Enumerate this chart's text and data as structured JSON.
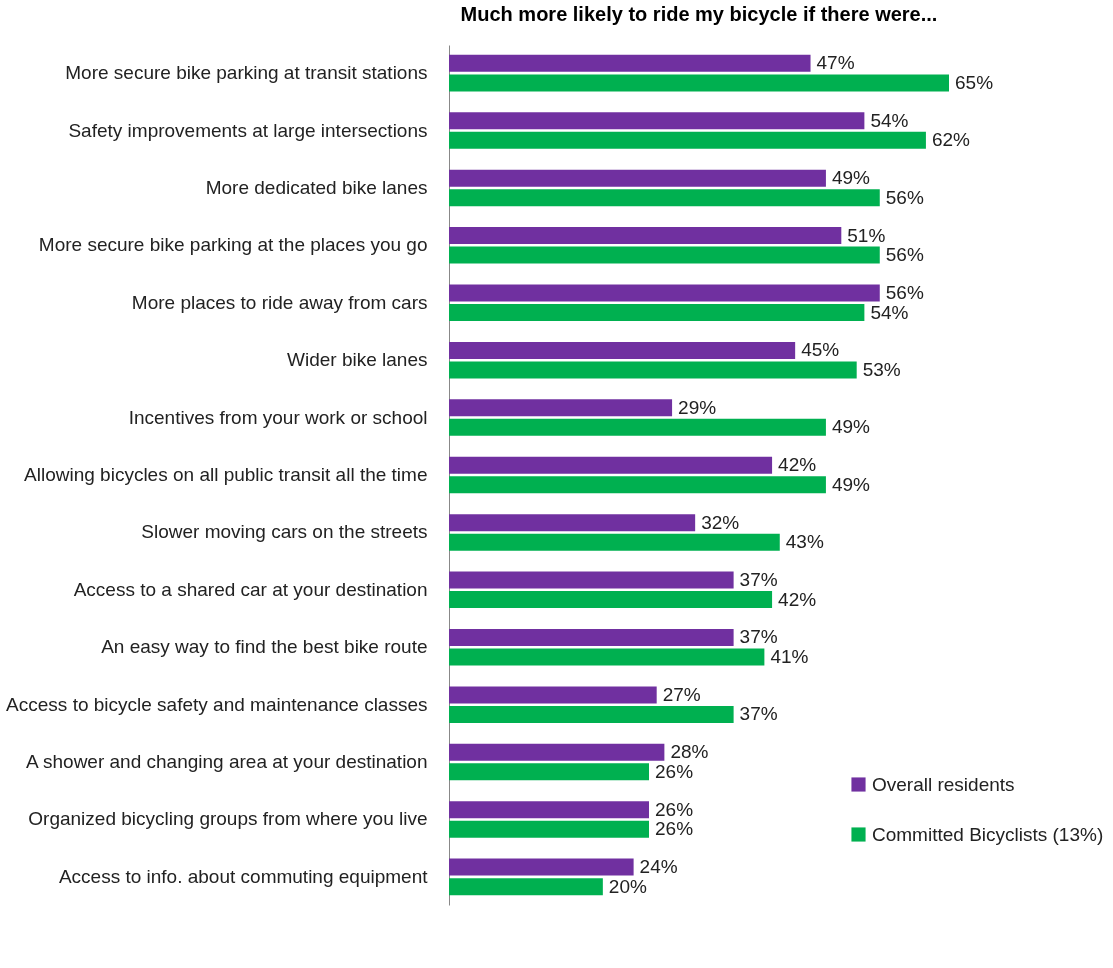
{
  "chart_data": {
    "type": "bar",
    "orientation": "horizontal",
    "title": "Much more likely to ride my bicycle if there were...",
    "categories": [
      "More secure bike parking at transit stations",
      "Safety improvements at large intersections",
      "More dedicated bike lanes",
      "More secure bike parking at the places you go",
      "More places to ride away from cars",
      "Wider bike lanes",
      "Incentives from your work or school",
      "Allowing bicycles on all public transit all the time",
      "Slower moving cars on the streets",
      "Access to a shared car at your destination",
      "An easy way to find the best bike route",
      "Access to bicycle safety and maintenance classes",
      "A shower and changing area at your destination",
      "Organized bicycling groups from where you live",
      "Access to info. about commuting equipment"
    ],
    "series": [
      {
        "name": "Overall residents",
        "color": "#7030a0",
        "values": [
          47,
          54,
          49,
          51,
          56,
          45,
          29,
          42,
          32,
          37,
          37,
          27,
          28,
          26,
          24
        ],
        "value_labels": [
          "47%",
          "54%",
          "49%",
          "51%",
          "56%",
          "45%",
          "29%",
          "42%",
          "32%",
          "37%",
          "37%",
          "27%",
          "28%",
          "26%",
          "24%"
        ]
      },
      {
        "name": "Committed Bicyclists (13%)",
        "color": "#00b050",
        "values": [
          65,
          62,
          56,
          56,
          54,
          53,
          49,
          49,
          43,
          42,
          41,
          37,
          26,
          26,
          20
        ],
        "value_labels": [
          "65%",
          "62%",
          "56%",
          "56%",
          "54%",
          "53%",
          "49%",
          "49%",
          "43%",
          "42%",
          "41%",
          "37%",
          "26%",
          "26%",
          "20%"
        ]
      }
    ],
    "tick_labels": "y",
    "legend": "bottom right"
  }
}
